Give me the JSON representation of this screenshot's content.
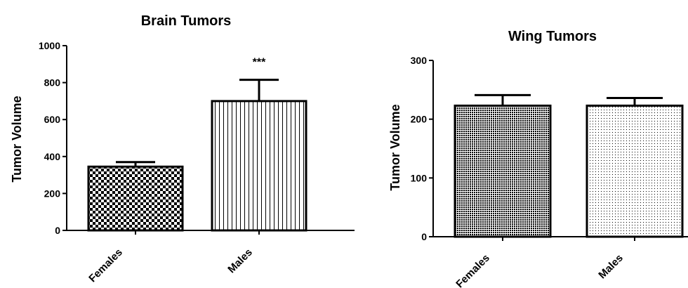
{
  "chart_data": [
    {
      "type": "bar",
      "title": "Brain Tumors",
      "ylabel": "Tumor Volume",
      "xlabel": "",
      "ylim": [
        0,
        1000
      ],
      "yticks": [
        "0",
        "200",
        "400",
        "600",
        "800",
        "1000"
      ],
      "ytick_values": [
        0,
        200,
        400,
        600,
        800,
        1000
      ],
      "categories": [
        "Females",
        "Males"
      ],
      "values": [
        345,
        700
      ],
      "errors": [
        25,
        115
      ],
      "annotations": [
        "",
        "***"
      ],
      "patterns": [
        "checker",
        "vertical-lines"
      ],
      "grid": false,
      "legend": "none"
    },
    {
      "type": "bar",
      "title": "Wing Tumors",
      "ylabel": "Tumor Volume",
      "xlabel": "",
      "ylim": [
        0,
        300
      ],
      "yticks": [
        "0",
        "100",
        "200",
        "300"
      ],
      "ytick_values": [
        0,
        100,
        200,
        300
      ],
      "categories": [
        "Females",
        "Males"
      ],
      "values": [
        223,
        223
      ],
      "errors": [
        18,
        13
      ],
      "annotations": [
        "",
        ""
      ],
      "patterns": [
        "dense-dots",
        "sparse-dots"
      ],
      "grid": false,
      "legend": "none"
    }
  ]
}
